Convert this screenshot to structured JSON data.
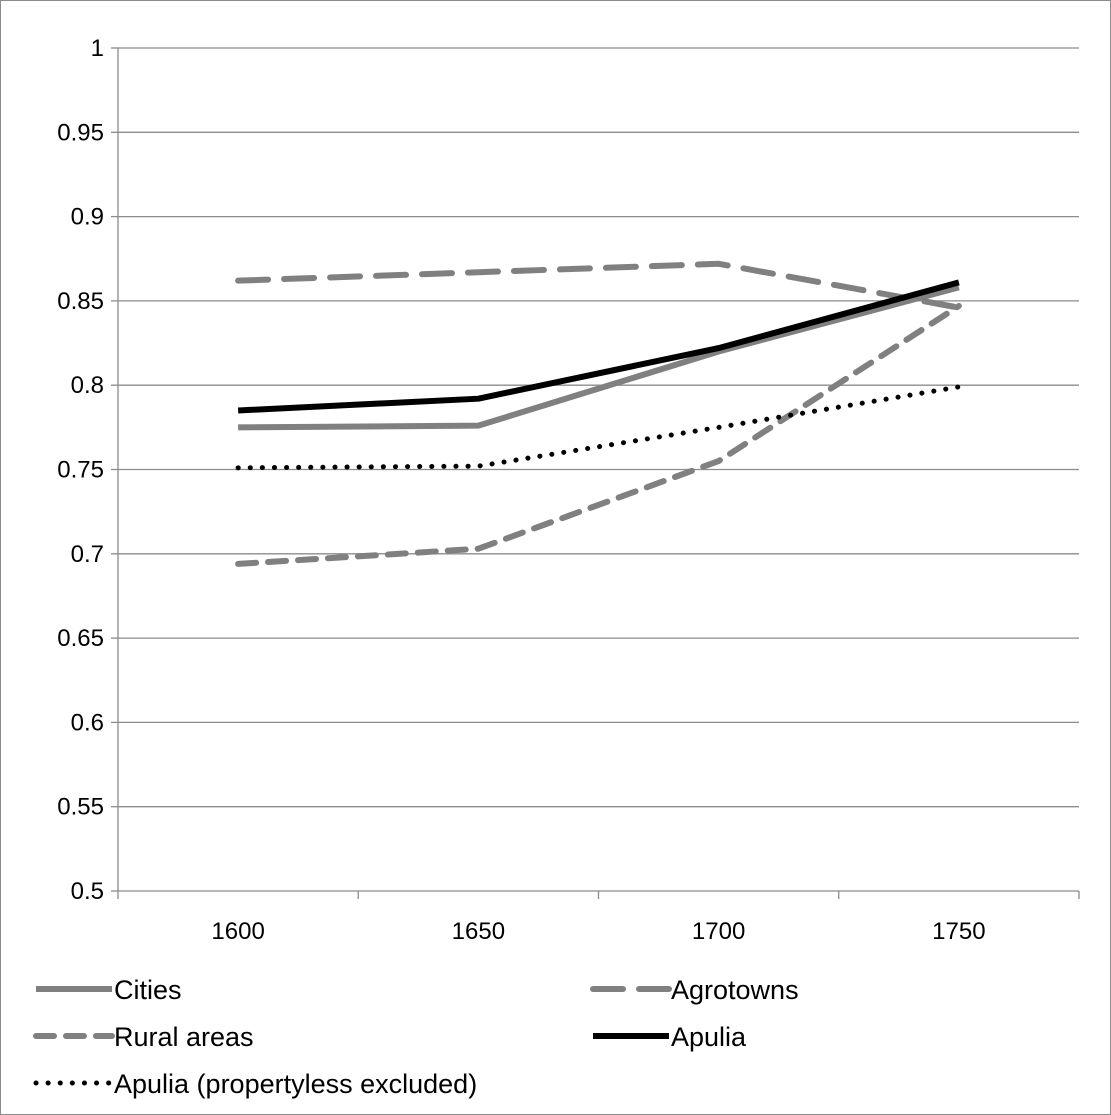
{
  "chart_data": {
    "type": "line",
    "title": "",
    "xlabel": "",
    "ylabel": "",
    "categories": [
      "1600",
      "1650",
      "1700",
      "1750"
    ],
    "ylim": [
      0.5,
      1
    ],
    "y_ticks": [
      "0.5",
      "0.55",
      "0.6",
      "0.65",
      "0.7",
      "0.75",
      "0.8",
      "0.85",
      "0.9",
      "0.95",
      "1"
    ],
    "grid": true,
    "legend_position": "bottom",
    "series": [
      {
        "name": "Cities",
        "values": [
          0.775,
          0.776,
          0.82,
          0.858
        ],
        "color": "#808080",
        "style": "solid"
      },
      {
        "name": "Agrotowns",
        "values": [
          0.862,
          0.867,
          0.872,
          0.846
        ],
        "color": "#808080",
        "style": "long-dash"
      },
      {
        "name": "Rural areas",
        "values": [
          0.694,
          0.703,
          0.755,
          0.847
        ],
        "color": "#808080",
        "style": "dash"
      },
      {
        "name": "Apulia",
        "values": [
          0.785,
          0.792,
          0.822,
          0.861
        ],
        "color": "#000000",
        "style": "solid"
      },
      {
        "name": "Apulia (propertyless excluded)",
        "values": [
          0.751,
          0.752,
          0.775,
          0.799
        ],
        "color": "#000000",
        "style": "dot"
      }
    ]
  }
}
